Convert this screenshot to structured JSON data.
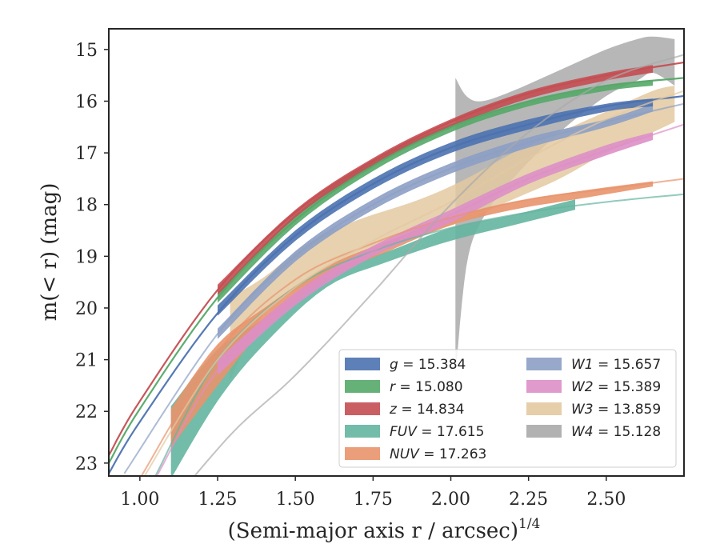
{
  "chart_data": {
    "type": "line",
    "title": "",
    "xlabel": "(Semi-major axis r / arcsec)",
    "xlabel_exponent": "1/4",
    "ylabel": "m(< r) (mag)",
    "xlim": [
      0.9,
      2.75
    ],
    "ylim": [
      23.25,
      14.6
    ],
    "y_inverted": true,
    "grid": false,
    "legend_position": "lower-right",
    "x_ticks": [
      "1.00",
      "1.25",
      "1.50",
      "1.75",
      "2.00",
      "2.25",
      "2.50"
    ],
    "x_tick_values": [
      1.0,
      1.25,
      1.5,
      1.75,
      2.0,
      2.25,
      2.5
    ],
    "y_ticks": [
      "15",
      "16",
      "17",
      "18",
      "19",
      "20",
      "21",
      "22",
      "23"
    ],
    "y_tick_values": [
      15,
      16,
      17,
      18,
      19,
      20,
      21,
      22,
      23
    ],
    "series": [
      {
        "name": "g",
        "value": "15.384",
        "color": "#4c72b0",
        "model": [
          [
            0.9,
            23.2
          ],
          [
            1.0,
            22.2
          ],
          [
            1.25,
            20.1
          ],
          [
            1.5,
            18.6
          ],
          [
            1.75,
            17.6
          ],
          [
            2.0,
            16.9
          ],
          [
            2.25,
            16.45
          ],
          [
            2.5,
            16.1
          ],
          [
            2.75,
            15.9
          ]
        ],
        "band": [
          [
            1.25,
            19.95,
            20.15
          ],
          [
            1.5,
            18.5,
            18.7
          ],
          [
            1.75,
            17.5,
            17.7
          ],
          [
            2.0,
            16.8,
            17.0
          ],
          [
            2.25,
            16.35,
            16.55
          ],
          [
            2.5,
            16.05,
            16.2
          ],
          [
            2.65,
            15.95,
            16.1
          ]
        ]
      },
      {
        "name": "r",
        "value": "15.080",
        "color": "#55a868",
        "model": [
          [
            0.9,
            23.0
          ],
          [
            1.0,
            21.95
          ],
          [
            1.25,
            19.8
          ],
          [
            1.5,
            18.3
          ],
          [
            1.75,
            17.25
          ],
          [
            2.0,
            16.5
          ],
          [
            2.25,
            16.0
          ],
          [
            2.5,
            15.7
          ],
          [
            2.75,
            15.55
          ]
        ],
        "band": [
          [
            1.25,
            19.7,
            19.9
          ],
          [
            1.5,
            18.2,
            18.4
          ],
          [
            1.75,
            17.15,
            17.35
          ],
          [
            2.0,
            16.45,
            16.6
          ],
          [
            2.25,
            16.0,
            16.1
          ],
          [
            2.5,
            15.7,
            15.8
          ],
          [
            2.65,
            15.6,
            15.7
          ]
        ]
      },
      {
        "name": "z",
        "value": "14.834",
        "color": "#c44e52",
        "model": [
          [
            0.9,
            22.85
          ],
          [
            1.0,
            21.8
          ],
          [
            1.25,
            19.65
          ],
          [
            1.5,
            18.15
          ],
          [
            1.75,
            17.15
          ],
          [
            2.0,
            16.4
          ],
          [
            2.25,
            15.85
          ],
          [
            2.5,
            15.5
          ],
          [
            2.75,
            15.25
          ]
        ],
        "band": [
          [
            1.25,
            19.55,
            19.75
          ],
          [
            1.5,
            18.1,
            18.25
          ],
          [
            1.75,
            17.1,
            17.25
          ],
          [
            2.0,
            16.35,
            16.5
          ],
          [
            2.25,
            15.8,
            15.95
          ],
          [
            2.5,
            15.45,
            15.6
          ],
          [
            2.65,
            15.3,
            15.45
          ]
        ]
      },
      {
        "name": "FUV",
        "value": "17.615",
        "color": "#64b5a0",
        "model": [
          [
            1.05,
            23.25
          ],
          [
            1.25,
            21.0
          ],
          [
            1.5,
            19.6
          ],
          [
            1.75,
            18.9
          ],
          [
            2.0,
            18.45
          ],
          [
            2.25,
            18.15
          ],
          [
            2.5,
            17.95
          ],
          [
            2.75,
            17.8
          ]
        ],
        "band": [
          [
            1.1,
            21.9,
            23.3
          ],
          [
            1.25,
            20.8,
            21.8
          ],
          [
            1.4,
            20.2,
            20.7
          ],
          [
            1.6,
            19.3,
            19.6
          ],
          [
            1.8,
            18.9,
            19.1
          ],
          [
            2.0,
            18.45,
            18.7
          ],
          [
            2.2,
            18.2,
            18.4
          ],
          [
            2.4,
            17.9,
            18.1
          ]
        ]
      },
      {
        "name": "NUV",
        "value": "17.263",
        "color": "#e8936c",
        "model": [
          [
            1.0,
            23.3
          ],
          [
            1.25,
            20.85
          ],
          [
            1.5,
            19.45
          ],
          [
            1.75,
            18.75
          ],
          [
            2.0,
            18.25
          ],
          [
            2.25,
            17.9
          ],
          [
            2.5,
            17.7
          ],
          [
            2.75,
            17.5
          ]
        ],
        "band": [
          [
            1.1,
            21.95,
            22.7
          ],
          [
            1.25,
            20.7,
            21.5
          ],
          [
            1.4,
            20.0,
            20.4
          ],
          [
            1.6,
            19.2,
            19.45
          ],
          [
            1.8,
            18.7,
            18.9
          ],
          [
            2.0,
            18.25,
            18.4
          ],
          [
            2.2,
            17.95,
            18.1
          ],
          [
            2.4,
            17.75,
            17.9
          ],
          [
            2.65,
            17.55,
            17.65
          ]
        ]
      },
      {
        "name": "W1",
        "value": "15.657",
        "color": "#8c9fc4",
        "model": [
          [
            0.95,
            23.2
          ],
          [
            1.25,
            20.5
          ],
          [
            1.5,
            19.0
          ],
          [
            1.75,
            18.0
          ],
          [
            2.0,
            17.3
          ],
          [
            2.25,
            16.8
          ],
          [
            2.5,
            16.4
          ],
          [
            2.75,
            16.05
          ]
        ],
        "band": [
          [
            1.25,
            20.4,
            20.6
          ],
          [
            1.5,
            18.9,
            19.1
          ],
          [
            1.75,
            17.9,
            18.1
          ],
          [
            2.0,
            17.2,
            17.4
          ],
          [
            2.25,
            16.7,
            16.9
          ],
          [
            2.5,
            16.35,
            16.5
          ],
          [
            2.65,
            16.05,
            16.2
          ]
        ]
      },
      {
        "name": "W2",
        "value": "15.389",
        "color": "#dd8fc6",
        "model": [
          [
            1.05,
            23.3
          ],
          [
            1.25,
            21.2
          ],
          [
            1.5,
            19.8
          ],
          [
            1.75,
            18.9
          ],
          [
            2.0,
            18.2
          ],
          [
            2.25,
            17.5
          ],
          [
            2.5,
            16.95
          ],
          [
            2.75,
            16.45
          ]
        ],
        "band": [
          [
            1.25,
            21.0,
            21.3
          ],
          [
            1.5,
            19.7,
            19.95
          ],
          [
            1.75,
            18.8,
            19.0
          ],
          [
            2.0,
            18.1,
            18.35
          ],
          [
            2.25,
            17.4,
            17.6
          ],
          [
            2.5,
            16.85,
            17.05
          ],
          [
            2.65,
            16.6,
            16.75
          ]
        ]
      },
      {
        "name": "W3",
        "value": "13.859",
        "color": "#e3c9a1",
        "model": [
          [
            1.0,
            23.4
          ],
          [
            1.25,
            21.0
          ],
          [
            1.5,
            19.6
          ],
          [
            1.75,
            18.7
          ],
          [
            2.0,
            17.95
          ],
          [
            2.25,
            17.1
          ],
          [
            2.5,
            16.35
          ],
          [
            2.75,
            15.8
          ]
        ],
        "band": [
          [
            1.29,
            19.8,
            21.4
          ],
          [
            1.4,
            19.4,
            20.1
          ],
          [
            1.55,
            18.7,
            19.5
          ],
          [
            1.7,
            18.3,
            19.0
          ],
          [
            1.9,
            17.9,
            18.6
          ],
          [
            2.05,
            17.5,
            18.3
          ],
          [
            2.2,
            17.0,
            17.9
          ],
          [
            2.35,
            16.6,
            17.5
          ],
          [
            2.5,
            16.2,
            17.0
          ],
          [
            2.65,
            15.8,
            16.6
          ],
          [
            2.72,
            15.7,
            16.4
          ]
        ]
      },
      {
        "name": "W4",
        "value": "15.128",
        "color": "#aaaaaa",
        "model": [
          [
            1.1,
            23.8
          ],
          [
            1.3,
            22.4
          ],
          [
            1.5,
            21.3
          ],
          [
            1.75,
            19.7
          ],
          [
            2.0,
            18.0
          ],
          [
            2.25,
            16.6
          ],
          [
            2.5,
            15.6
          ],
          [
            2.75,
            15.1
          ]
        ],
        "band": [
          [
            2.015,
            15.55,
            21.3
          ],
          [
            2.05,
            15.9,
            19.2
          ],
          [
            2.1,
            16.0,
            18.3
          ],
          [
            2.2,
            15.8,
            17.5
          ],
          [
            2.35,
            15.4,
            16.6
          ],
          [
            2.5,
            15.0,
            15.9
          ],
          [
            2.6,
            14.8,
            15.6
          ],
          [
            2.65,
            14.75,
            15.45
          ],
          [
            2.72,
            14.8,
            15.7
          ]
        ]
      }
    ]
  }
}
